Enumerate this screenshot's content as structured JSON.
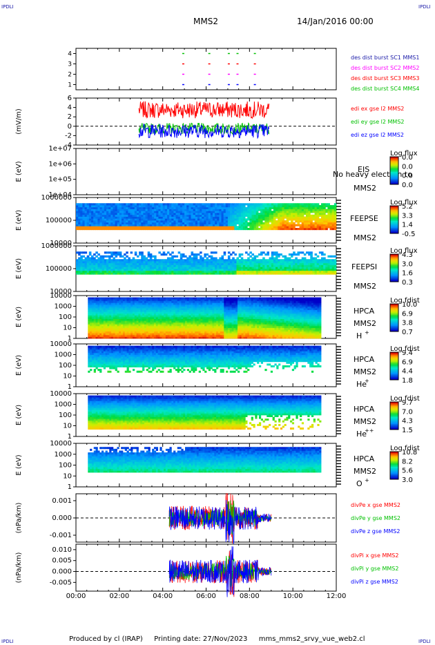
{
  "header": {
    "corner_label": "IPDLI",
    "spacecraft": "MMS2",
    "date": "14/Jan/2016 00:00"
  },
  "footer": {
    "produced_by": "Produced by cl (IRAP)",
    "printing_date": "Printing date: 27/Nov/2023",
    "filename": "mms_mms2_srvy_vue_web2.cl"
  },
  "colors": {
    "red": "#ff0000",
    "green": "#00c000",
    "blue": "#0000ff",
    "magenta": "#ff00ff"
  },
  "chart_data": [
    {
      "type": "scatter",
      "ylim": [
        0.5,
        4.5
      ],
      "yticks": [
        "1",
        "2",
        "3",
        "4"
      ],
      "legend": [
        {
          "text": "des dist burst SC1 MMS1",
          "color": "#1a1aa8"
        },
        {
          "text": "des dist burst SC2 MMS2",
          "color": "#ff00ff"
        },
        {
          "text": "des dist burst SC3 MMS3",
          "color": "#ff0000"
        },
        {
          "text": "des dist burst SC4 MMS4",
          "color": "#00c000"
        }
      ],
      "series": [
        {
          "y": 1,
          "x": [
            4.9,
            6.1,
            7.0,
            7.4,
            8.2
          ]
        },
        {
          "y": 2,
          "x": [
            4.9,
            6.1,
            7.0,
            7.4,
            8.2
          ]
        },
        {
          "y": 3,
          "x": [
            4.9,
            6.1,
            7.0,
            7.4,
            8.2
          ]
        },
        {
          "y": 4,
          "x": [
            4.9,
            6.1,
            7.0,
            7.4,
            8.2
          ]
        }
      ]
    },
    {
      "type": "line",
      "ylabel": "(mV/m)",
      "ylim": [
        -4,
        6
      ],
      "yticks": [
        "-4",
        "-2",
        "0",
        "2",
        "4",
        "6"
      ],
      "legend": [
        {
          "text": "edi ex gse l2 MMS2",
          "color": "#ff0000"
        },
        {
          "text": "edi ey gse l2 MMS2",
          "color": "#00c000"
        },
        {
          "text": "edi ez gse l2 MMS2",
          "color": "#0000ff"
        }
      ],
      "x_range": [
        2.9,
        8.9
      ],
      "series": [
        {
          "name": "ex",
          "mean": 3.5,
          "amplitude": 1.8
        },
        {
          "name": "ey",
          "mean": -0.5,
          "amplitude": 1.2
        },
        {
          "name": "ez",
          "mean": -1.0,
          "amplitude": 1.5
        }
      ]
    },
    {
      "type": "heatmap",
      "ylabel": "E (eV)",
      "yticks": [
        "1e+04",
        "1e+05",
        "1e+06",
        "1e+07"
      ],
      "instrument": "EIS",
      "spacecraft": "MMS2",
      "note": "No heavy electron to",
      "cbar_title": "Log flux",
      "cbar_ticks": [
        "0.0",
        "0.0",
        "0.0",
        "0.0"
      ]
    },
    {
      "type": "heatmap",
      "ylabel": "E (eV)",
      "yticks": [
        "10000",
        "100000",
        "1000000"
      ],
      "instrument": "FEEPSE",
      "spacecraft": "MMS2",
      "cbar_title": "Log flux",
      "cbar_ticks": [
        "5.2",
        "3.3",
        "1.4",
        "-0.5"
      ]
    },
    {
      "type": "heatmap",
      "ylabel": "E (eV)",
      "yticks": [
        "10000",
        "100000",
        "1000000"
      ],
      "instrument": "FEEPSI",
      "spacecraft": "MMS2",
      "cbar_title": "Log flux",
      "cbar_ticks": [
        "4.3",
        "3.0",
        "1.6",
        "0.3"
      ]
    },
    {
      "type": "heatmap",
      "ylabel": "E (eV)",
      "yticks": [
        "1",
        "10",
        "100",
        "1000",
        "10000"
      ],
      "instrument": "HPCA",
      "spacecraft": "MMS2",
      "species": "H",
      "charge": "+",
      "cbar_title": "Log fdist",
      "cbar_ticks": [
        "10.0",
        "6.9",
        "3.8",
        "0.7"
      ]
    },
    {
      "type": "heatmap",
      "ylabel": "E (eV)",
      "yticks": [
        "1",
        "10",
        "100",
        "1000",
        "10000"
      ],
      "instrument": "HPCA",
      "spacecraft": "MMS2",
      "species": "He",
      "charge": "+",
      "cbar_title": "Log fdist",
      "cbar_ticks": [
        "9.4",
        "6.9",
        "4.4",
        "1.8"
      ]
    },
    {
      "type": "heatmap",
      "ylabel": "E (eV)",
      "yticks": [
        "1",
        "10",
        "100",
        "1000",
        "10000"
      ],
      "instrument": "HPCA",
      "spacecraft": "MMS2",
      "species": "He",
      "charge": "++",
      "cbar_title": "Log fdist",
      "cbar_ticks": [
        "9.7",
        "7.0",
        "4.3",
        "1.5"
      ]
    },
    {
      "type": "heatmap",
      "ylabel": "E (eV)",
      "yticks": [
        "1",
        "10",
        "100",
        "1000",
        "10000"
      ],
      "instrument": "HPCA",
      "spacecraft": "MMS2",
      "species": "O",
      "charge": "+",
      "cbar_title": "Log fdist",
      "cbar_ticks": [
        "10.8",
        "8.2",
        "5.6",
        "3.0"
      ]
    },
    {
      "type": "line",
      "ylabel": "(nPa/km)",
      "ylim": [
        -0.0014,
        0.0014
      ],
      "yticks": [
        "-0.001",
        "0.000",
        "0.001"
      ],
      "legend": [
        {
          "text": "divPe x gse MMS2",
          "color": "#ff0000"
        },
        {
          "text": "divPe y gse MMS2",
          "color": "#00c000"
        },
        {
          "text": "divPe z gse MMS2",
          "color": "#0000ff"
        }
      ],
      "x_range": [
        4.3,
        9.0
      ]
    },
    {
      "type": "line",
      "ylabel": "(nPa/km)",
      "ylim": [
        -0.009,
        0.0125
      ],
      "yticks": [
        "-0.005",
        "0.000",
        "0.005",
        "0.010"
      ],
      "legend": [
        {
          "text": "divPi x gse MMS2",
          "color": "#ff0000"
        },
        {
          "text": "divPi y gse MMS2",
          "color": "#00c000"
        },
        {
          "text": "divPi z gse MMS2",
          "color": "#0000ff"
        }
      ],
      "x_range": [
        4.3,
        9.0
      ]
    }
  ],
  "time_axis": {
    "range_hours": [
      0,
      12
    ],
    "ticks": [
      "00:00",
      "02:00",
      "04:00",
      "06:00",
      "08:00",
      "10:00",
      "12:00"
    ]
  }
}
